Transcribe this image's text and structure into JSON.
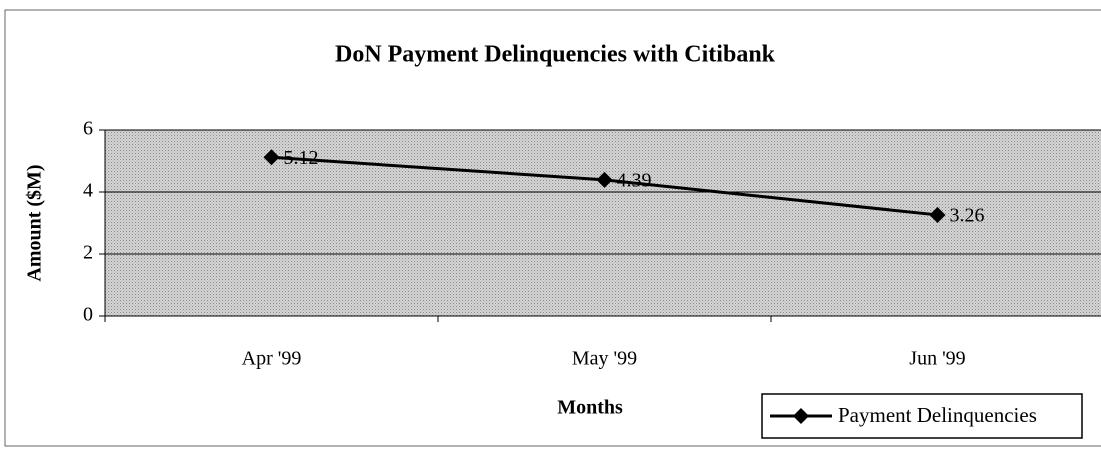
{
  "chart_data": {
    "type": "line",
    "title": "DoN Payment Delinquencies with Citibank",
    "x_label": "Months",
    "y_label": "Amount ($M)",
    "categories": [
      "Apr '99",
      "May '99",
      "Jun '99"
    ],
    "series": [
      {
        "name": "Payment Delinquencies",
        "color": "#000000",
        "values": [
          5.12,
          4.39,
          3.26
        ]
      }
    ],
    "ylim": [
      0,
      6
    ],
    "yticks": [
      0,
      2,
      4,
      6
    ],
    "grid": true,
    "legend": "bottom-right"
  }
}
